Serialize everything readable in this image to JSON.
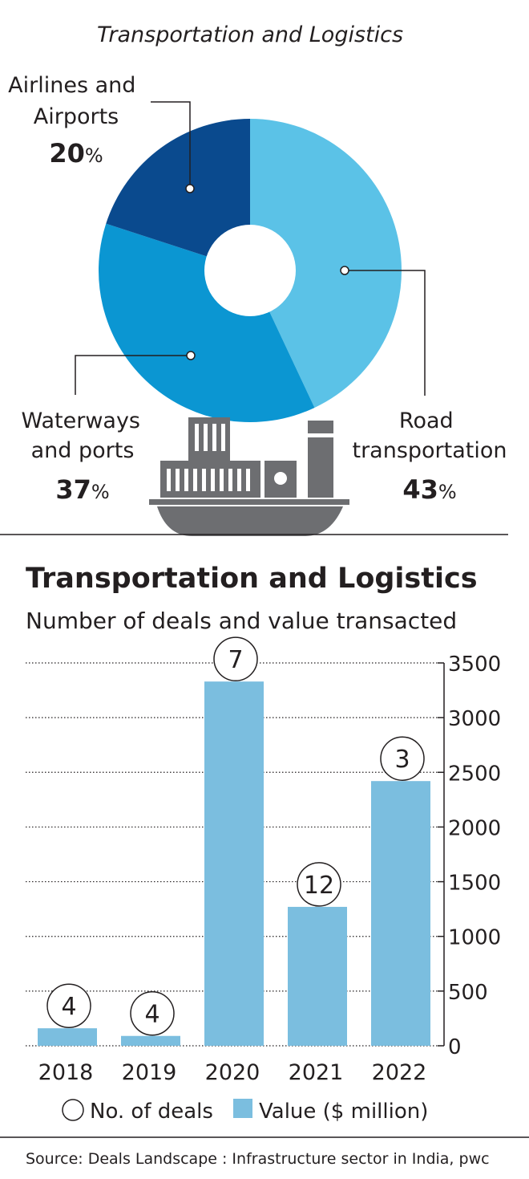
{
  "chart_data": [
    {
      "type": "pie",
      "title": "Transportation and Logistics",
      "slices": [
        {
          "label_lines": [
            "Road",
            "transportation"
          ],
          "value": 43,
          "pct_text": "43",
          "color": "#5bc2e7"
        },
        {
          "label_lines": [
            "Waterways",
            "and ports"
          ],
          "value": 37,
          "pct_text": "37",
          "color": "#0b96d2"
        },
        {
          "label_lines": [
            "Airlines and",
            "Airports"
          ],
          "value": 20,
          "pct_text": "20",
          "color": "#0a4a8e"
        }
      ],
      "percent_sign": "%"
    },
    {
      "type": "bar",
      "title": "Transportation and Logistics",
      "subtitle": "Number of deals and value transacted",
      "categories": [
        "2018",
        "2019",
        "2020",
        "2021",
        "2022"
      ],
      "series": [
        {
          "name": "Value ($ million)",
          "values": [
            160,
            90,
            3330,
            1270,
            2420
          ],
          "color": "#7bbedf"
        },
        {
          "name": "No. of deals",
          "values": [
            4,
            4,
            7,
            12,
            3
          ]
        }
      ],
      "ylim": [
        0,
        3500
      ],
      "y_ticks": [
        0,
        500,
        1000,
        1500,
        2000,
        2500,
        3000,
        3500
      ],
      "y_axis_side": "right",
      "grid": "dotted",
      "legend": {
        "position": "bottom",
        "items": [
          "No. of deals",
          "Value ($ million)"
        ]
      }
    }
  ],
  "source": "Source: Deals Landscape : Infrastructure sector in India, pwc",
  "colors": {
    "text": "#231f20",
    "ship": "#6d6e71",
    "divider": "#231f20"
  }
}
